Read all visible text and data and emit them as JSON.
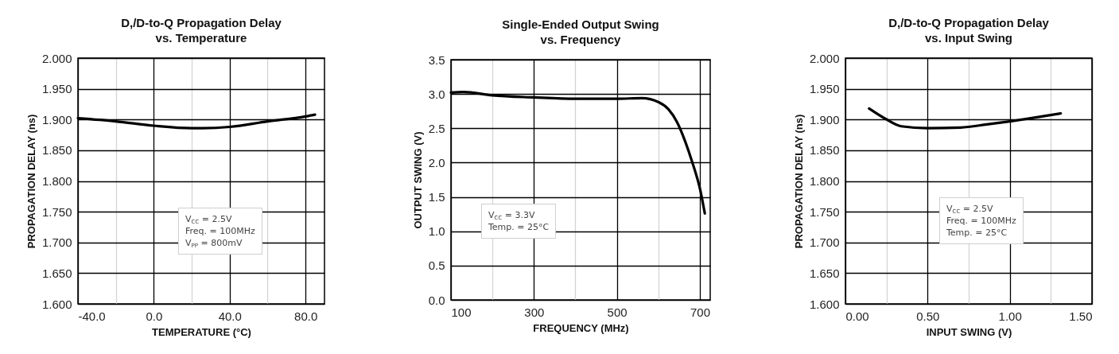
{
  "chart_data": [
    {
      "type": "line",
      "title": "D,/D-to-Q Propagation Delay\nvs. Temperature",
      "xlabel": "TEMPERATURE (°C)",
      "ylabel": "PROPAGATION DELAY (ns)",
      "x": [
        -40,
        -20,
        0,
        20,
        25,
        40,
        60,
        80,
        85
      ],
      "series": [
        {
          "color": "#000000",
          "values": [
            1.902,
            1.897,
            1.89,
            1.886,
            1.886,
            1.888,
            1.897,
            1.905,
            1.908
          ]
        }
      ],
      "xlim": [
        -40,
        90
      ],
      "xticks": [
        {
          "value": -40,
          "label": "-40.0"
        },
        {
          "value": -20,
          "label": null
        },
        {
          "value": 0,
          "label": "0.0"
        },
        {
          "value": 20,
          "label": null
        },
        {
          "value": 40,
          "label": "40.0"
        },
        {
          "value": 60,
          "label": null
        },
        {
          "value": 80,
          "label": "80.0"
        }
      ],
      "ylim": [
        1.6,
        2.0
      ],
      "yticks": [
        {
          "value": 1.6,
          "label": "1.600"
        },
        {
          "value": 1.65,
          "label": "1.650"
        },
        {
          "value": 1.7,
          "label": "1.700"
        },
        {
          "value": 1.75,
          "label": "1.750"
        },
        {
          "value": 1.8,
          "label": "1.800"
        },
        {
          "value": 1.85,
          "label": "1.850"
        },
        {
          "value": 1.9,
          "label": "1.900"
        },
        {
          "value": 1.95,
          "label": "1.950"
        },
        {
          "value": 2.0,
          "label": "2.000"
        }
      ],
      "grid": true,
      "marker": "none",
      "line_style": "solid",
      "annotations": [
        "V$_{CC}$ = 2.5V",
        "Freq. = 100MHz",
        "V$_{PP}$ = 800mV"
      ]
    },
    {
      "type": "line",
      "title": "Single-Ended Output Swing\nvs. Frequency",
      "xlabel": "FREQUENCY (MHz)",
      "ylabel": "OUTPUT SWING (V)",
      "x": [
        100,
        130,
        200,
        300,
        400,
        500,
        560,
        601,
        624,
        645,
        664,
        681,
        701,
        712
      ],
      "series": [
        {
          "color": "#000000",
          "values": [
            3.02,
            3.03,
            2.98,
            2.95,
            2.93,
            2.93,
            2.94,
            2.88,
            2.78,
            2.59,
            2.32,
            2.02,
            1.6,
            1.26
          ]
        }
      ],
      "xlim": [
        100,
        725
      ],
      "xticks": [
        100,
        {
          "value": 200,
          "label": null
        },
        300,
        {
          "value": 400,
          "label": null
        },
        500,
        {
          "value": 600,
          "label": null
        },
        700
      ],
      "ylim": [
        0,
        3.5
      ],
      "yticks": [
        {
          "value": 0,
          "label": "0.0"
        },
        0.5,
        {
          "value": 1,
          "label": "1.0"
        },
        1.5,
        {
          "value": 2,
          "label": "2.0"
        },
        2.5,
        {
          "value": 3,
          "label": "3.0"
        },
        3.5
      ],
      "grid": true,
      "marker": "none",
      "line_style": "solid",
      "annotations": [
        "V$_{CC}$ = 3.3V",
        "Temp. = 25°C"
      ]
    },
    {
      "type": "line",
      "title": "D,/D-to-Q Propagation Delay\nvs. Input Swing",
      "xlabel": "INPUT SWING (V)",
      "ylabel": "PROPAGATION DELAY (ns)",
      "x": [
        0.144,
        0.245,
        0.34,
        0.5,
        0.7,
        0.86,
        1.0,
        1.15,
        1.31
      ],
      "series": [
        {
          "color": "#000000",
          "values": [
            1.918,
            1.901,
            1.889,
            1.886,
            1.887,
            1.892,
            1.897,
            1.903,
            1.91
          ]
        }
      ],
      "xlim": [
        0,
        1.5
      ],
      "xticks": [
        {
          "value": 0,
          "label": "0.00"
        },
        {
          "value": 0.25,
          "label": null
        },
        {
          "value": 0.5,
          "label": "0.50"
        },
        {
          "value": 0.75,
          "label": null
        },
        {
          "value": 1,
          "label": "1.00"
        },
        {
          "value": 1.25,
          "label": null
        },
        {
          "value": 1.5,
          "label": "1.50"
        }
      ],
      "ylim": [
        1.6,
        2.0
      ],
      "yticks": [
        {
          "value": 1.6,
          "label": "1.600"
        },
        {
          "value": 1.65,
          "label": "1.650"
        },
        {
          "value": 1.7,
          "label": "1.700"
        },
        {
          "value": 1.75,
          "label": "1.750"
        },
        {
          "value": 1.8,
          "label": "1.800"
        },
        {
          "value": 1.85,
          "label": "1.850"
        },
        {
          "value": 1.9,
          "label": "1.900"
        },
        {
          "value": 1.95,
          "label": "1.950"
        },
        {
          "value": 2.0,
          "label": "2.000"
        }
      ],
      "grid": true,
      "marker": "none",
      "line_style": "solid",
      "annotations": [
        "V$_{CC}$ = 2.5V",
        "Freq. = 100MHz",
        "Temp. = 25°C"
      ]
    }
  ]
}
